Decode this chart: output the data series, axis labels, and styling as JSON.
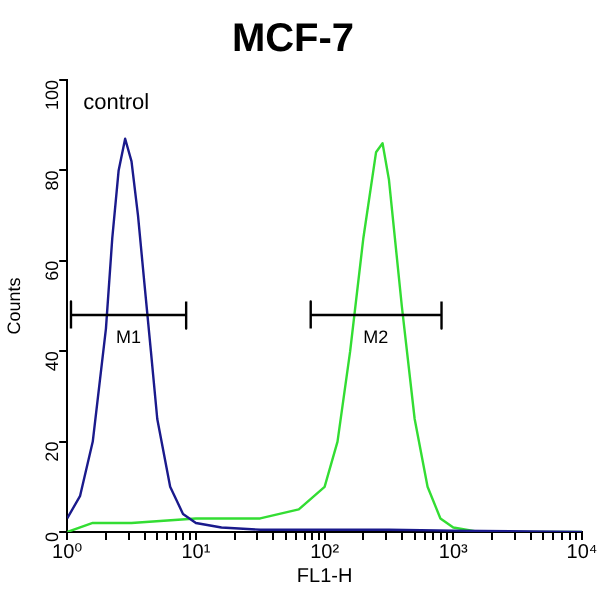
{
  "chart_data": {
    "type": "line",
    "title": "MCF-7",
    "xlabel": "FL1-H",
    "ylabel": "Counts",
    "annotations": [
      "control",
      {
        "text": "M1",
        "x": 3,
        "y": 48
      },
      {
        "text": "M2",
        "x": 250,
        "y": 48
      }
    ],
    "log": "x",
    "grid": false,
    "legend": false,
    "marker": "none",
    "line_style": "solid",
    "xlim": [
      1,
      10000
    ],
    "ylim": [
      0,
      100
    ],
    "xticks": [
      {
        "value": 1,
        "label": "10⁰"
      },
      {
        "value": 2,
        "label": null
      },
      {
        "value": 3,
        "label": null
      },
      {
        "value": 4,
        "label": null
      },
      {
        "value": 5,
        "label": null
      },
      {
        "value": 6,
        "label": null
      },
      {
        "value": 7,
        "label": null
      },
      {
        "value": 8,
        "label": null
      },
      {
        "value": 9,
        "label": null
      },
      {
        "value": 10,
        "label": "10¹"
      },
      {
        "value": 20,
        "label": null
      },
      {
        "value": 30,
        "label": null
      },
      {
        "value": 40,
        "label": null
      },
      {
        "value": 50,
        "label": null
      },
      {
        "value": 60,
        "label": null
      },
      {
        "value": 70,
        "label": null
      },
      {
        "value": 80,
        "label": null
      },
      {
        "value": 90,
        "label": null
      },
      {
        "value": 100,
        "label": "10²"
      },
      {
        "value": 200,
        "label": null
      },
      {
        "value": 300,
        "label": null
      },
      {
        "value": 400,
        "label": null
      },
      {
        "value": 500,
        "label": null
      },
      {
        "value": 600,
        "label": null
      },
      {
        "value": 700,
        "label": null
      },
      {
        "value": 800,
        "label": null
      },
      {
        "value": 900,
        "label": null
      },
      {
        "value": 1000,
        "label": "10³"
      },
      {
        "value": 2000,
        "label": null
      },
      {
        "value": 3000,
        "label": null
      },
      {
        "value": 4000,
        "label": null
      },
      {
        "value": 5000,
        "label": null
      },
      {
        "value": 6000,
        "label": null
      },
      {
        "value": 7000,
        "label": null
      },
      {
        "value": 8000,
        "label": null
      },
      {
        "value": 9000,
        "label": null
      },
      {
        "value": 10000,
        "label": "10⁴"
      }
    ],
    "yticks": [
      0,
      20,
      40,
      60,
      80,
      100
    ],
    "series": [
      {
        "color": "#000000",
        "x": [
          1.07,
          1.07,
          1.07,
          8.4,
          8.4,
          8.4
        ],
        "values": [
          45,
          51,
          48,
          48,
          45,
          51
        ]
      },
      {
        "color": "#000000",
        "x": [
          78,
          78,
          78,
          810,
          810,
          810
        ],
        "values": [
          45,
          51,
          48,
          48,
          45,
          51
        ]
      },
      {
        "color": "#1a1a8c",
        "x": [
          1,
          1.26,
          1.58,
          2,
          2.24,
          2.51,
          2.82,
          3.16,
          3.55,
          3.98,
          4.47,
          5.01,
          6.31,
          7.94,
          10,
          15.8,
          31.6,
          100,
          316,
          1000,
          10000
        ],
        "values": [
          3,
          8,
          20,
          45,
          65,
          80,
          87,
          82,
          70,
          55,
          40,
          25,
          10,
          4,
          2,
          1,
          0.5,
          0.5,
          0.5,
          0.3,
          0
        ]
      },
      {
        "color": "#33dd33",
        "x": [
          1,
          1.58,
          3.16,
          10,
          31.6,
          63,
          100,
          126,
          158,
          200,
          251,
          282,
          316,
          398,
          501,
          631,
          794,
          1000,
          1585,
          10000
        ],
        "values": [
          0,
          2,
          2,
          3,
          3,
          5,
          10,
          20,
          40,
          65,
          84,
          86,
          78,
          50,
          25,
          10,
          3,
          1,
          0,
          0
        ]
      }
    ]
  }
}
